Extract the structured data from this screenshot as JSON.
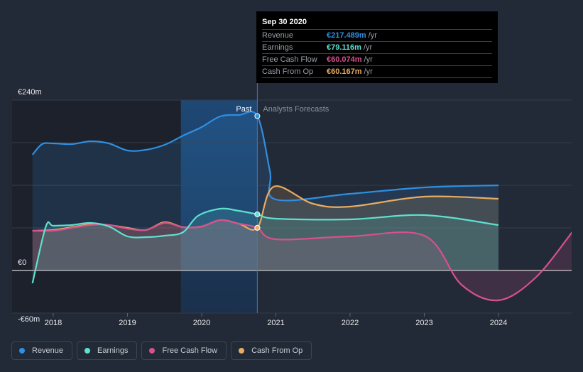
{
  "chart_data": {
    "type": "line",
    "x_tick_labels": [
      "2018",
      "2019",
      "2020",
      "2021",
      "2022",
      "2023",
      "2024"
    ],
    "y_tick_labels": [
      "€240m",
      "€0",
      "-€60m"
    ],
    "ylim": [
      -60,
      240
    ],
    "xlim": [
      2017.7,
      2025.0
    ],
    "past_label": "Past",
    "forecast_label": "Analysts Forecasts",
    "past_end_x": 2020.75,
    "highlight_start_x": 2019.72,
    "series": [
      {
        "name": "Revenue",
        "color": "#2f8fe0",
        "x": [
          2017.72,
          2017.85,
          2018.0,
          2018.25,
          2018.5,
          2018.75,
          2019.0,
          2019.25,
          2019.5,
          2019.75,
          2020.0,
          2020.25,
          2020.5,
          2020.75,
          2020.92,
          2021.0,
          2022.0,
          2023.0,
          2024.0
        ],
        "y": [
          163,
          178,
          179,
          178,
          182,
          179,
          169,
          170,
          177,
          190,
          202,
          217,
          219,
          217.489,
          140,
          100,
          108,
          117,
          120
        ]
      },
      {
        "name": "Earnings",
        "color": "#5fe0cf",
        "x": [
          2017.72,
          2017.9,
          2018.0,
          2018.25,
          2018.5,
          2018.75,
          2019.0,
          2019.25,
          2019.5,
          2019.75,
          2019.95,
          2020.25,
          2020.5,
          2020.75,
          2021.0,
          2022.0,
          2023.0,
          2024.0
        ],
        "y": [
          -18,
          62,
          63,
          64,
          67,
          62,
          48,
          47,
          49,
          54,
          77,
          87,
          84,
          79.116,
          73,
          72,
          78,
          64
        ]
      },
      {
        "name": "Free Cash Flow",
        "color": "#d6518f",
        "x": [
          2017.72,
          2018.0,
          2018.25,
          2018.5,
          2018.75,
          2019.0,
          2019.25,
          2019.5,
          2019.75,
          2020.0,
          2020.25,
          2020.5,
          2020.75,
          2021.0,
          2022.0,
          2023.0,
          2023.5,
          2024.0,
          2024.5,
          2025.0
        ],
        "y": [
          56,
          56,
          60,
          64,
          64,
          59,
          57,
          67,
          61,
          62,
          71,
          66,
          60.074,
          44,
          48,
          49,
          -20,
          -42,
          -10,
          55
        ]
      },
      {
        "name": "Cash From Op",
        "color": "#e8ac62",
        "x": [
          2017.72,
          2018.0,
          2018.25,
          2018.5,
          2018.75,
          2019.0,
          2019.25,
          2019.5,
          2019.75,
          2020.0,
          2020.25,
          2020.5,
          2020.75,
          2020.97,
          2021.5,
          2022.0,
          2023.0,
          2024.0
        ],
        "y": [
          56,
          57,
          61,
          65,
          64,
          60,
          57,
          68,
          61,
          62,
          71,
          66,
          60.167,
          118,
          94,
          90,
          104,
          101
        ]
      }
    ]
  },
  "tooltip": {
    "date": "Sep 30 2020",
    "rows": [
      {
        "label": "Revenue",
        "value": "€217.489m",
        "unit": "/yr",
        "color": "#2f8fe0"
      },
      {
        "label": "Earnings",
        "value": "€79.116m",
        "unit": "/yr",
        "color": "#5fe0cf"
      },
      {
        "label": "Free Cash Flow",
        "value": "€60.074m",
        "unit": "/yr",
        "color": "#d6518f"
      },
      {
        "label": "Cash From Op",
        "value": "€60.167m",
        "unit": "/yr",
        "color": "#e8ac62"
      }
    ]
  },
  "legend": [
    {
      "label": "Revenue",
      "color": "#2f8fe0"
    },
    {
      "label": "Earnings",
      "color": "#5fe0cf"
    },
    {
      "label": "Free Cash Flow",
      "color": "#d6518f"
    },
    {
      "label": "Cash From Op",
      "color": "#e8ac62"
    }
  ]
}
